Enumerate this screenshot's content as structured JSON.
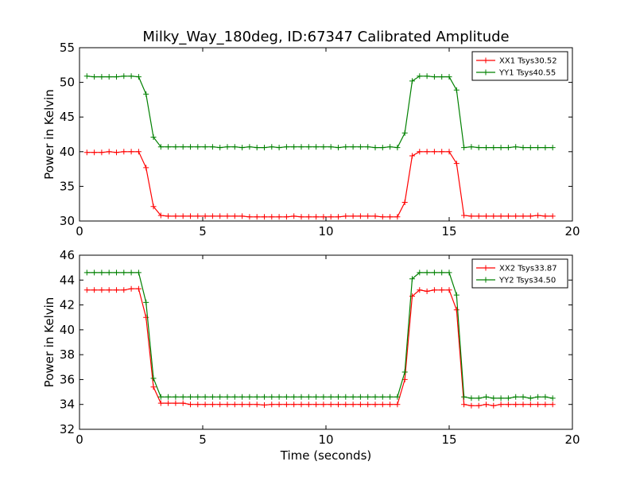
{
  "chart_data": [
    {
      "type": "line",
      "title": "Milky_Way_180deg, ID:67347 Calibrated Amplitude",
      "xlabel": "",
      "ylabel": "Power in Kelvin",
      "xlim": [
        0,
        20
      ],
      "ylim": [
        30,
        55
      ],
      "xticks": [
        0,
        5,
        10,
        15,
        20
      ],
      "yticks": [
        30,
        35,
        40,
        45,
        50,
        55
      ],
      "grid": false,
      "legend_position": "top-right",
      "x": [
        0.3,
        0.6,
        0.9,
        1.2,
        1.5,
        1.8,
        2.1,
        2.4,
        2.7,
        3.0,
        3.3,
        3.6,
        3.9,
        4.2,
        4.5,
        4.8,
        5.1,
        5.4,
        5.7,
        6.0,
        6.3,
        6.6,
        6.9,
        7.2,
        7.5,
        7.8,
        8.1,
        8.4,
        8.7,
        9.0,
        9.3,
        9.6,
        9.9,
        10.2,
        10.5,
        10.8,
        11.1,
        11.4,
        11.7,
        12.0,
        12.3,
        12.6,
        12.9,
        13.2,
        13.5,
        13.8,
        14.1,
        14.4,
        14.7,
        15.0,
        15.3,
        15.6,
        15.9,
        16.2,
        16.5,
        16.8,
        17.1,
        17.4,
        17.7,
        18.0,
        18.3,
        18.6,
        18.9,
        19.2
      ],
      "series": [
        {
          "name": "XX1 Tsys30.52",
          "color": "#ff0000",
          "values": [
            39.9,
            39.9,
            39.9,
            40.0,
            39.9,
            40.0,
            40.0,
            40.0,
            37.7,
            32.1,
            30.8,
            30.7,
            30.7,
            30.7,
            30.7,
            30.7,
            30.7,
            30.7,
            30.7,
            30.7,
            30.7,
            30.7,
            30.6,
            30.6,
            30.6,
            30.6,
            30.6,
            30.6,
            30.7,
            30.6,
            30.6,
            30.6,
            30.6,
            30.6,
            30.6,
            30.7,
            30.7,
            30.7,
            30.7,
            30.7,
            30.6,
            30.6,
            30.6,
            32.7,
            39.4,
            40.0,
            40.0,
            40.0,
            40.0,
            40.0,
            38.3,
            30.8,
            30.7,
            30.7,
            30.7,
            30.7,
            30.7,
            30.7,
            30.7,
            30.7,
            30.7,
            30.8,
            30.7,
            30.7
          ]
        },
        {
          "name": "YY1 Tsys40.55",
          "color": "#008000",
          "values": [
            50.9,
            50.8,
            50.8,
            50.8,
            50.8,
            50.9,
            50.9,
            50.8,
            48.3,
            42.1,
            40.7,
            40.7,
            40.7,
            40.7,
            40.7,
            40.7,
            40.7,
            40.7,
            40.6,
            40.7,
            40.7,
            40.6,
            40.7,
            40.6,
            40.6,
            40.7,
            40.6,
            40.7,
            40.7,
            40.7,
            40.7,
            40.7,
            40.7,
            40.7,
            40.6,
            40.7,
            40.7,
            40.7,
            40.7,
            40.6,
            40.6,
            40.7,
            40.6,
            42.7,
            50.2,
            50.9,
            50.9,
            50.8,
            50.8,
            50.8,
            48.9,
            40.6,
            40.7,
            40.6,
            40.6,
            40.6,
            40.6,
            40.6,
            40.7,
            40.6,
            40.6,
            40.6,
            40.6,
            40.6
          ]
        }
      ]
    },
    {
      "type": "line",
      "title": "",
      "xlabel": "Time (seconds)",
      "ylabel": "Power in Kelvin",
      "xlim": [
        0,
        20
      ],
      "ylim": [
        32,
        46
      ],
      "xticks": [
        0,
        5,
        10,
        15,
        20
      ],
      "yticks": [
        32,
        34,
        36,
        38,
        40,
        42,
        44,
        46
      ],
      "grid": false,
      "legend_position": "top-right",
      "x": [
        0.3,
        0.6,
        0.9,
        1.2,
        1.5,
        1.8,
        2.1,
        2.4,
        2.7,
        3.0,
        3.3,
        3.6,
        3.9,
        4.2,
        4.5,
        4.8,
        5.1,
        5.4,
        5.7,
        6.0,
        6.3,
        6.6,
        6.9,
        7.2,
        7.5,
        7.8,
        8.1,
        8.4,
        8.7,
        9.0,
        9.3,
        9.6,
        9.9,
        10.2,
        10.5,
        10.8,
        11.1,
        11.4,
        11.7,
        12.0,
        12.3,
        12.6,
        12.9,
        13.2,
        13.5,
        13.8,
        14.1,
        14.4,
        14.7,
        15.0,
        15.3,
        15.6,
        15.9,
        16.2,
        16.5,
        16.8,
        17.1,
        17.4,
        17.7,
        18.0,
        18.3,
        18.6,
        18.9,
        19.2
      ],
      "series": [
        {
          "name": "XX2 Tsys33.87",
          "color": "#ff0000",
          "values": [
            43.2,
            43.2,
            43.2,
            43.2,
            43.2,
            43.2,
            43.3,
            43.3,
            41.0,
            35.4,
            34.1,
            34.1,
            34.1,
            34.1,
            34.0,
            34.0,
            34.0,
            34.0,
            34.0,
            34.0,
            34.0,
            34.0,
            34.0,
            34.0,
            33.95,
            34.0,
            34.0,
            34.0,
            34.0,
            34.0,
            34.0,
            34.0,
            34.0,
            34.0,
            34.0,
            34.0,
            34.0,
            34.0,
            34.0,
            34.0,
            34.0,
            34.0,
            34.0,
            36.0,
            42.7,
            43.2,
            43.1,
            43.2,
            43.2,
            43.2,
            41.6,
            34.0,
            33.9,
            33.9,
            34.0,
            33.9,
            34.0,
            34.0,
            34.0,
            34.0,
            34.0,
            34.0,
            34.0,
            34.0
          ]
        },
        {
          "name": "YY2 Tsys34.50",
          "color": "#008000",
          "values": [
            44.6,
            44.6,
            44.6,
            44.6,
            44.6,
            44.6,
            44.6,
            44.6,
            42.2,
            36.1,
            34.6,
            34.6,
            34.6,
            34.6,
            34.6,
            34.6,
            34.6,
            34.6,
            34.6,
            34.6,
            34.6,
            34.6,
            34.6,
            34.6,
            34.6,
            34.6,
            34.6,
            34.6,
            34.6,
            34.6,
            34.6,
            34.6,
            34.6,
            34.6,
            34.6,
            34.6,
            34.6,
            34.6,
            34.6,
            34.6,
            34.6,
            34.6,
            34.6,
            36.6,
            44.1,
            44.6,
            44.6,
            44.6,
            44.6,
            44.6,
            42.8,
            34.6,
            34.5,
            34.5,
            34.6,
            34.5,
            34.5,
            34.5,
            34.6,
            34.6,
            34.5,
            34.6,
            34.6,
            34.5
          ]
        }
      ]
    }
  ]
}
